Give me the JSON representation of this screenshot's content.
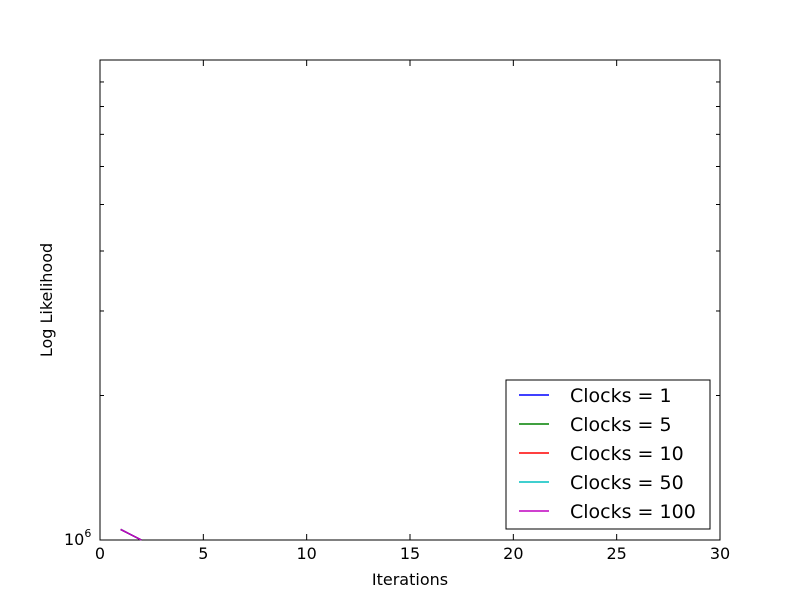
{
  "chart_data": {
    "type": "line",
    "xlabel": "Iterations",
    "ylabel": "Log Likelihood",
    "xlim": [
      0,
      30
    ],
    "x_ticks": [
      "0",
      "5",
      "10",
      "15",
      "20",
      "25",
      "30"
    ],
    "y_scale": "log",
    "y_tick_label_base": "10",
    "y_tick_label_exp": "6",
    "grid": false,
    "legend_position": "lower right",
    "series": [
      {
        "name": "Clocks = 1",
        "color": "#0000ff",
        "x": [
          1,
          2
        ],
        "y_frac": [
          0.022,
          0.0
        ]
      },
      {
        "name": "Clocks = 5",
        "color": "#008000",
        "x": [
          1,
          2
        ],
        "y_frac": [
          0.022,
          0.0
        ]
      },
      {
        "name": "Clocks = 10",
        "color": "#ff0000",
        "x": [
          1,
          2
        ],
        "y_frac": [
          0.022,
          0.0
        ]
      },
      {
        "name": "Clocks = 50",
        "color": "#00bfbf",
        "x": [
          1,
          2
        ],
        "y_frac": [
          0.022,
          0.0
        ]
      },
      {
        "name": "Clocks = 100",
        "color": "#bf00bf",
        "x": [
          1,
          2
        ],
        "y_frac": [
          0.022,
          0.0
        ]
      }
    ]
  }
}
